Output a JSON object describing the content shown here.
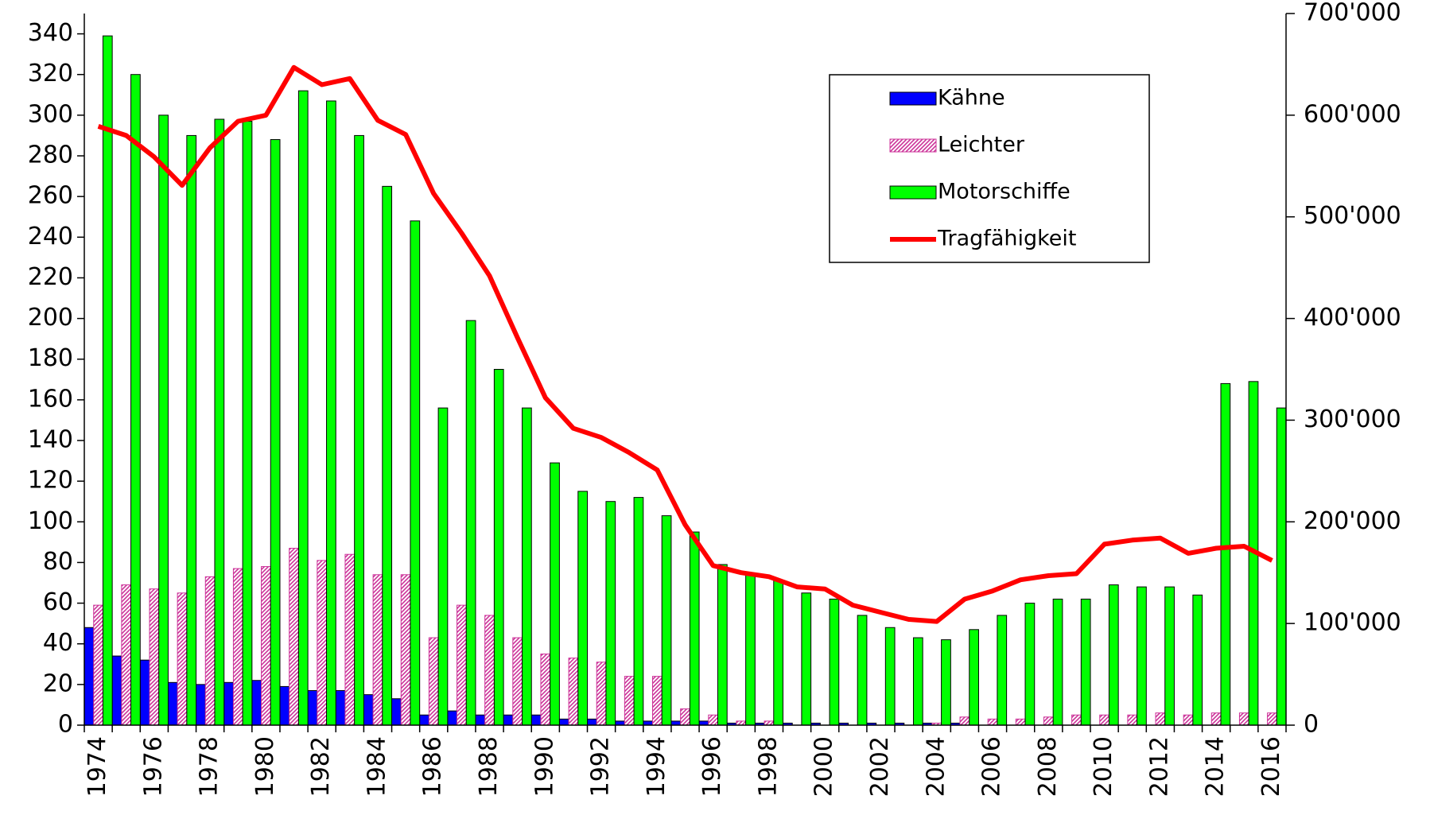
{
  "chart_data": {
    "type": "bar",
    "categories": [
      "1974",
      null,
      "1976",
      null,
      "1978",
      null,
      "1980",
      null,
      "1982",
      null,
      "1984",
      null,
      "1986",
      null,
      "1988",
      null,
      "1990",
      null,
      "1992",
      null,
      "1994",
      null,
      "1996",
      null,
      "1998",
      null,
      "2000",
      null,
      "2002",
      null,
      "2004",
      null,
      "2006",
      null,
      "2008",
      null,
      "2010",
      null,
      "2012",
      null,
      "2014",
      null,
      "2016"
    ],
    "series": [
      {
        "name": "Kähne",
        "type": "bar",
        "color": "#0000ff",
        "values": [
          48,
          34,
          32,
          21,
          20,
          21,
          22,
          19,
          17,
          17,
          15,
          13,
          5,
          7,
          5,
          5,
          5,
          3,
          3,
          2,
          2,
          2,
          2,
          1,
          1,
          1,
          1,
          1,
          1,
          1,
          1,
          1,
          0,
          0,
          0,
          0,
          0,
          0,
          0,
          0,
          0,
          0,
          0
        ]
      },
      {
        "name": "Leichter",
        "type": "bar",
        "color": "#cc3399",
        "hatch": true,
        "values": [
          59,
          69,
          67,
          65,
          73,
          77,
          78,
          87,
          81,
          84,
          74,
          74,
          43,
          59,
          54,
          43,
          35,
          33,
          31,
          24,
          24,
          8,
          5,
          2,
          2,
          0,
          0,
          0,
          0,
          0,
          1,
          4,
          3,
          3,
          4,
          5,
          5,
          5,
          6,
          5,
          6,
          6,
          6
        ]
      },
      {
        "name": "Motorschiffe",
        "type": "bar",
        "color": "#00ff00",
        "values": [
          339,
          320,
          300,
          290,
          298,
          297,
          288,
          312,
          307,
          290,
          265,
          248,
          156,
          199,
          175,
          156,
          129,
          115,
          110,
          112,
          103,
          95,
          79,
          74,
          71,
          65,
          62,
          54,
          48,
          43,
          42,
          47,
          54,
          60,
          62,
          62,
          69,
          68,
          68,
          64,
          168,
          169,
          156
        ]
      },
      {
        "name": "Tragfähigkeit",
        "type": "line",
        "axis": "y2",
        "color": "#ff0000",
        "values": [
          589000,
          580000,
          559000,
          531000,
          568000,
          594000,
          600000,
          647000,
          630000,
          636000,
          595000,
          581000,
          523000,
          484000,
          442000,
          381000,
          322000,
          292000,
          283000,
          268000,
          251000,
          197000,
          157000,
          150000,
          146000,
          136000,
          134000,
          118000,
          111000,
          104000,
          102000,
          124000,
          132000,
          143000,
          147000,
          149000,
          178000,
          182000,
          184000,
          169000,
          174000,
          176000,
          162000
        ]
      }
    ],
    "ylim": [
      0,
      350
    ],
    "yticks": [
      0,
      20,
      40,
      60,
      80,
      100,
      120,
      140,
      160,
      180,
      200,
      220,
      240,
      260,
      280,
      300,
      320,
      340
    ],
    "y2lim": [
      0,
      700000
    ],
    "y2ticks": [
      0,
      {
        "value": 100000,
        "label": "100'000"
      },
      {
        "value": 200000,
        "label": "200'000"
      },
      {
        "value": 300000,
        "label": "300'000"
      },
      {
        "value": 400000,
        "label": "400'000"
      },
      {
        "value": 500000,
        "label": "500'000"
      },
      {
        "value": 600000,
        "label": "600'000"
      },
      {
        "value": 700000,
        "label": "700'000"
      }
    ],
    "legend": "upper right"
  }
}
